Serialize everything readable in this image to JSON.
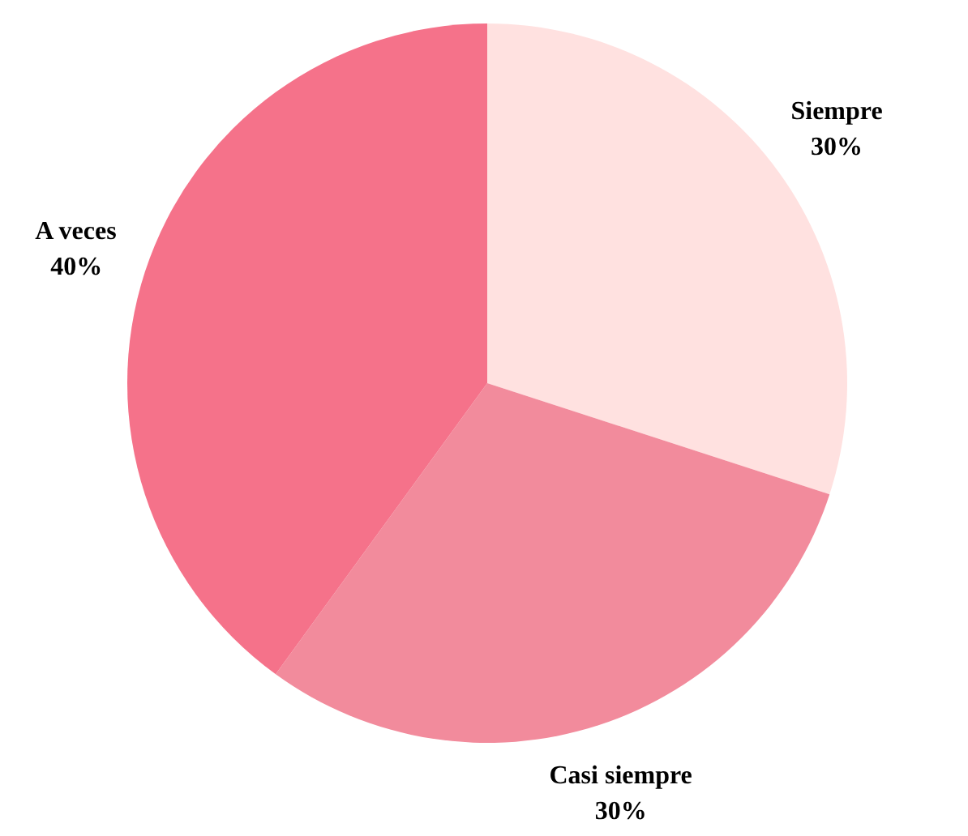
{
  "chart_data": {
    "type": "pie",
    "categories": [
      "Siempre",
      "Casi siempre",
      "A veces"
    ],
    "values": [
      30,
      30,
      40
    ],
    "colors": [
      "#ffe1e0",
      "#f28b9c",
      "#f5728a"
    ],
    "value_labels": [
      "30%",
      "30%",
      "40%"
    ]
  }
}
